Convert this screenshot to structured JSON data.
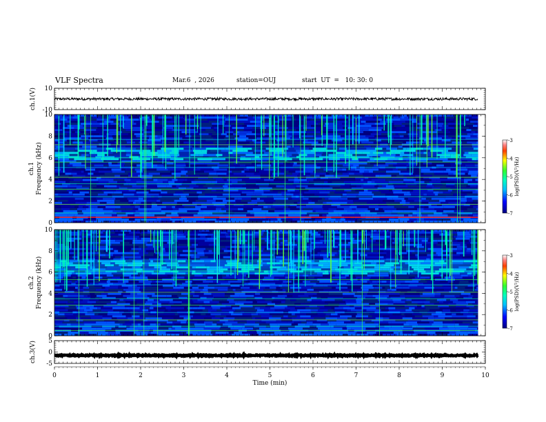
{
  "header": {
    "title": "VLF Spectra",
    "date": "Mar.6  , 2026",
    "station": "station=OUJ",
    "start": "start  UT  =   10: 30: 0"
  },
  "chart_data": [
    {
      "type": "line",
      "panel": "ch1-waveform",
      "ylabel": "ch.1(V)",
      "ylim": [
        -10,
        10
      ],
      "yticks": [
        "10",
        "-10"
      ],
      "xlim": [
        0,
        10
      ],
      "mean": 0,
      "noise_amplitude": 1.2,
      "color": "#000000"
    },
    {
      "type": "heatmap",
      "panel": "ch1-spectrogram",
      "ylabel_line1": "ch.1",
      "ylabel_line2": "Frequency  (kHz)",
      "ylim": [
        0,
        10
      ],
      "yticks": [
        "0",
        "2",
        "4",
        "6",
        "8",
        "10"
      ],
      "xlim": [
        0,
        10
      ],
      "data_end_min": 9.83,
      "colorbar": {
        "label": "log(PSD)(V²/Hz)",
        "range": [
          -7,
          -3
        ],
        "ticks": [
          "-3",
          "-4",
          "-5",
          "-6",
          "-7"
        ]
      },
      "horizontal_lines_khz": [
        0.5,
        0.9,
        1.7,
        2.4,
        3.1,
        3.6,
        4.2,
        5.1,
        5.6,
        6.0,
        7.2,
        7.7
      ],
      "bright_band_khz": [
        5.8,
        7.0
      ]
    },
    {
      "type": "heatmap",
      "panel": "ch2-spectrogram",
      "ylabel_line1": "ch.2",
      "ylabel_line2": "Frequency  (kHz)",
      "ylim": [
        0,
        10
      ],
      "yticks": [
        "0",
        "2",
        "4",
        "6",
        "8",
        "10"
      ],
      "xlim": [
        0,
        10
      ],
      "data_end_min": 9.83,
      "colorbar": {
        "label": "log(PSD)(V²/Hz)",
        "range": [
          -7,
          -3
        ],
        "ticks": [
          "-3",
          "-4",
          "-5",
          "-6",
          "-7"
        ]
      },
      "horizontal_lines_khz": [
        0.5,
        0.9,
        1.5,
        2.2,
        2.9,
        3.5,
        4.1,
        4.8,
        5.3,
        6.1
      ],
      "bright_band_khz": [
        5.8,
        7.2
      ]
    },
    {
      "type": "line",
      "panel": "ch3-waveform",
      "ylabel": "ch.3(V)",
      "ylim": [
        -5,
        5
      ],
      "yticks": [
        "5",
        "0",
        "-5"
      ],
      "xlim": [
        0,
        10
      ],
      "mean": -1.5,
      "noise_amplitude": 0.25,
      "color": "#000000",
      "xlabel": "Time  (min)",
      "xticks": [
        "0",
        "1",
        "2",
        "3",
        "4",
        "5",
        "6",
        "7",
        "8",
        "9",
        "10"
      ]
    }
  ]
}
